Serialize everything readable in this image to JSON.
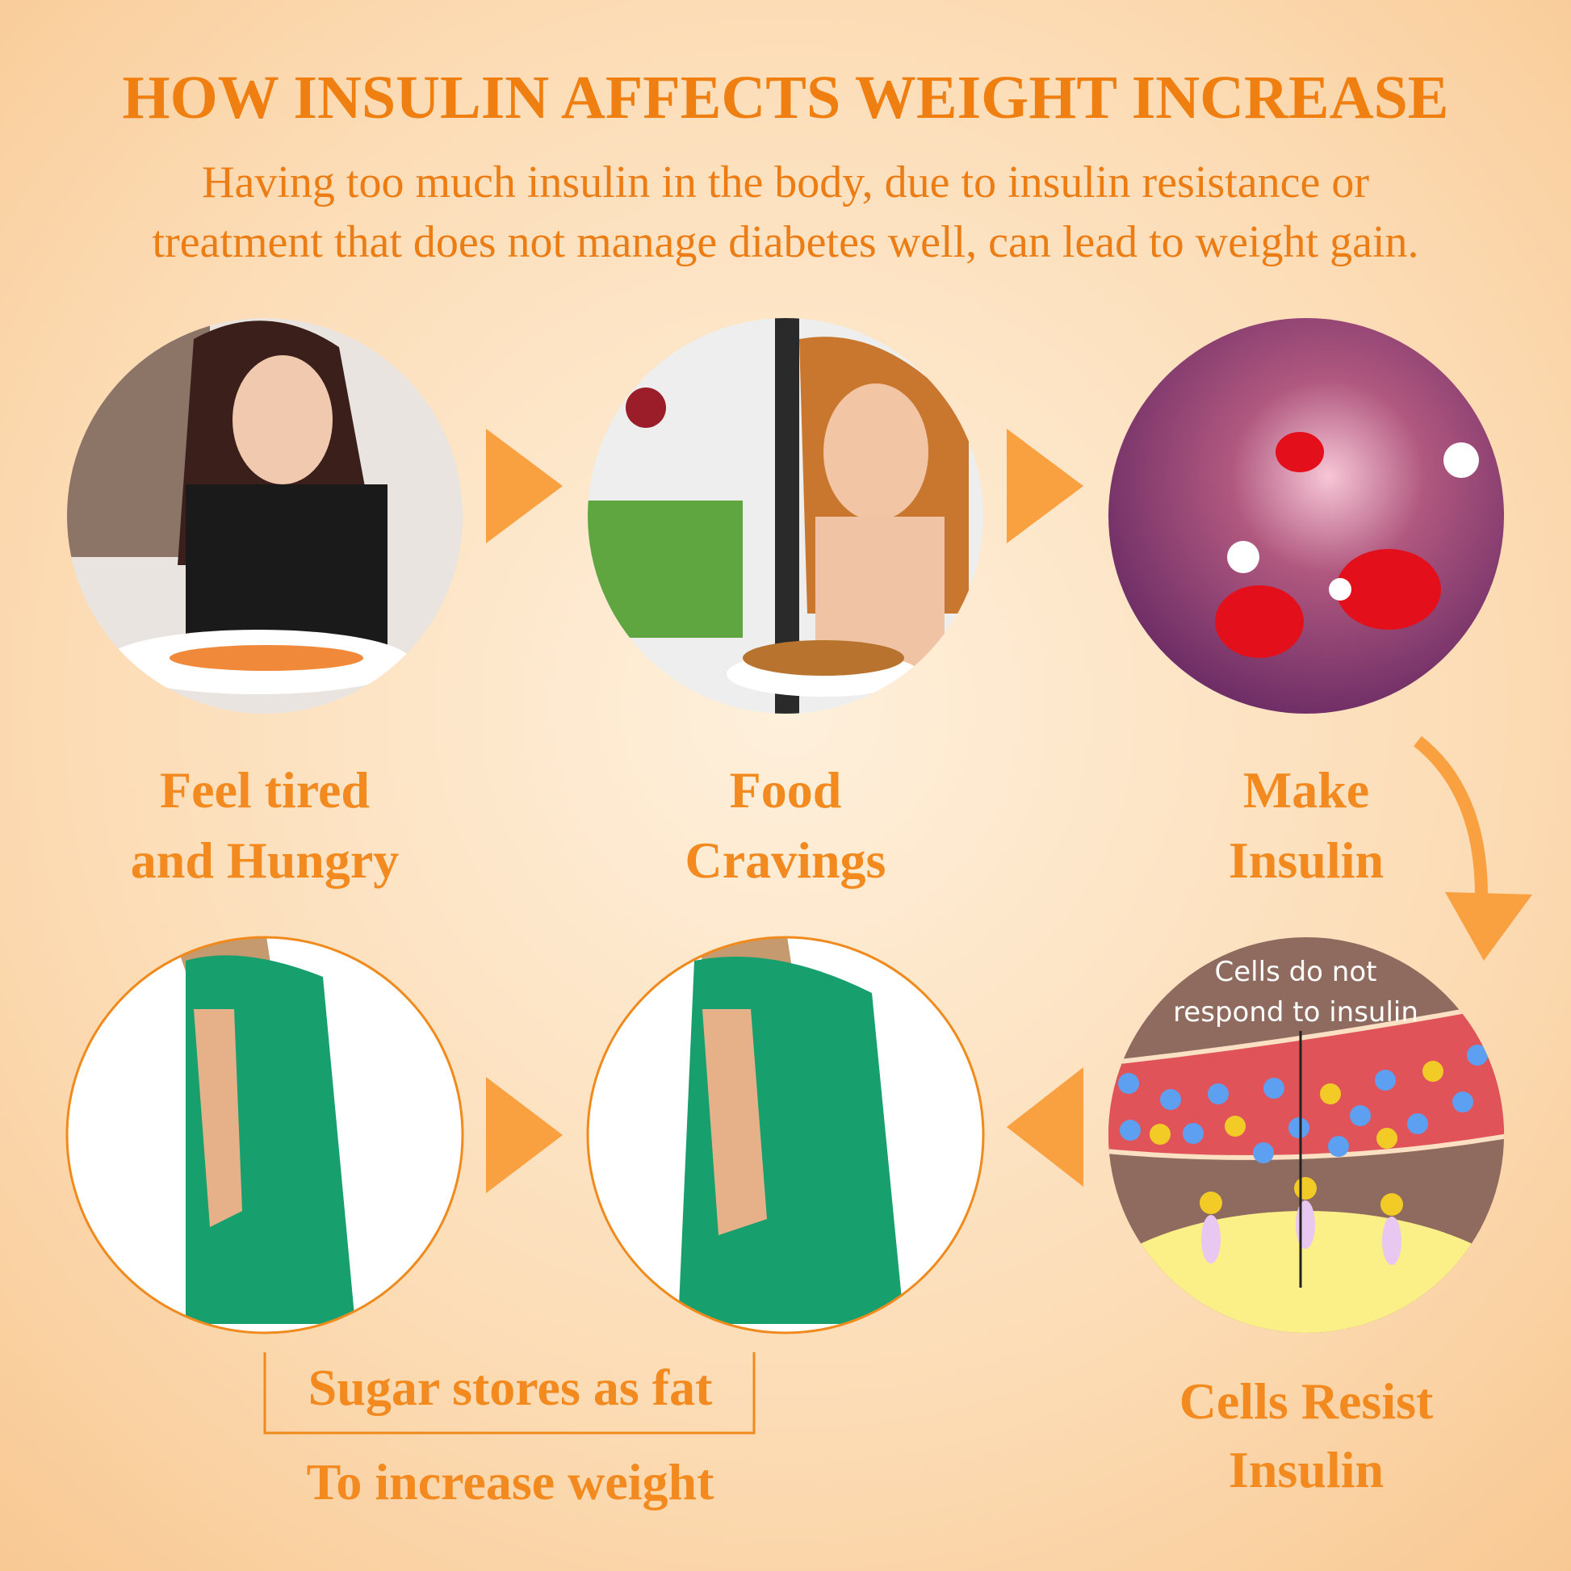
{
  "header": {
    "title": "HOW INSULIN AFFECTS WEIGHT INCREASE",
    "subtitle_line1": "Having too much insulin in the body, due to insulin resistance or",
    "subtitle_line2": "treatment that does not manage diabetes well, can lead to weight gain."
  },
  "steps": [
    {
      "line1": "Feel tired",
      "line2": "and Hungry"
    },
    {
      "line1": "Food",
      "line2": "Cravings"
    },
    {
      "line1": "Make",
      "line2": "Insulin"
    },
    {
      "line1": "Cells Resist",
      "line2": "Insulin"
    },
    {
      "line1": "Sugar stores as fat",
      "line2": "To increase weight"
    }
  ],
  "cell_diagram": {
    "caption_line1": "Cells do not",
    "caption_line2": "respond to insulin"
  },
  "colors": {
    "accent": "#f07f12",
    "arrow": "#f9a040",
    "background": "#fbd9b0"
  }
}
